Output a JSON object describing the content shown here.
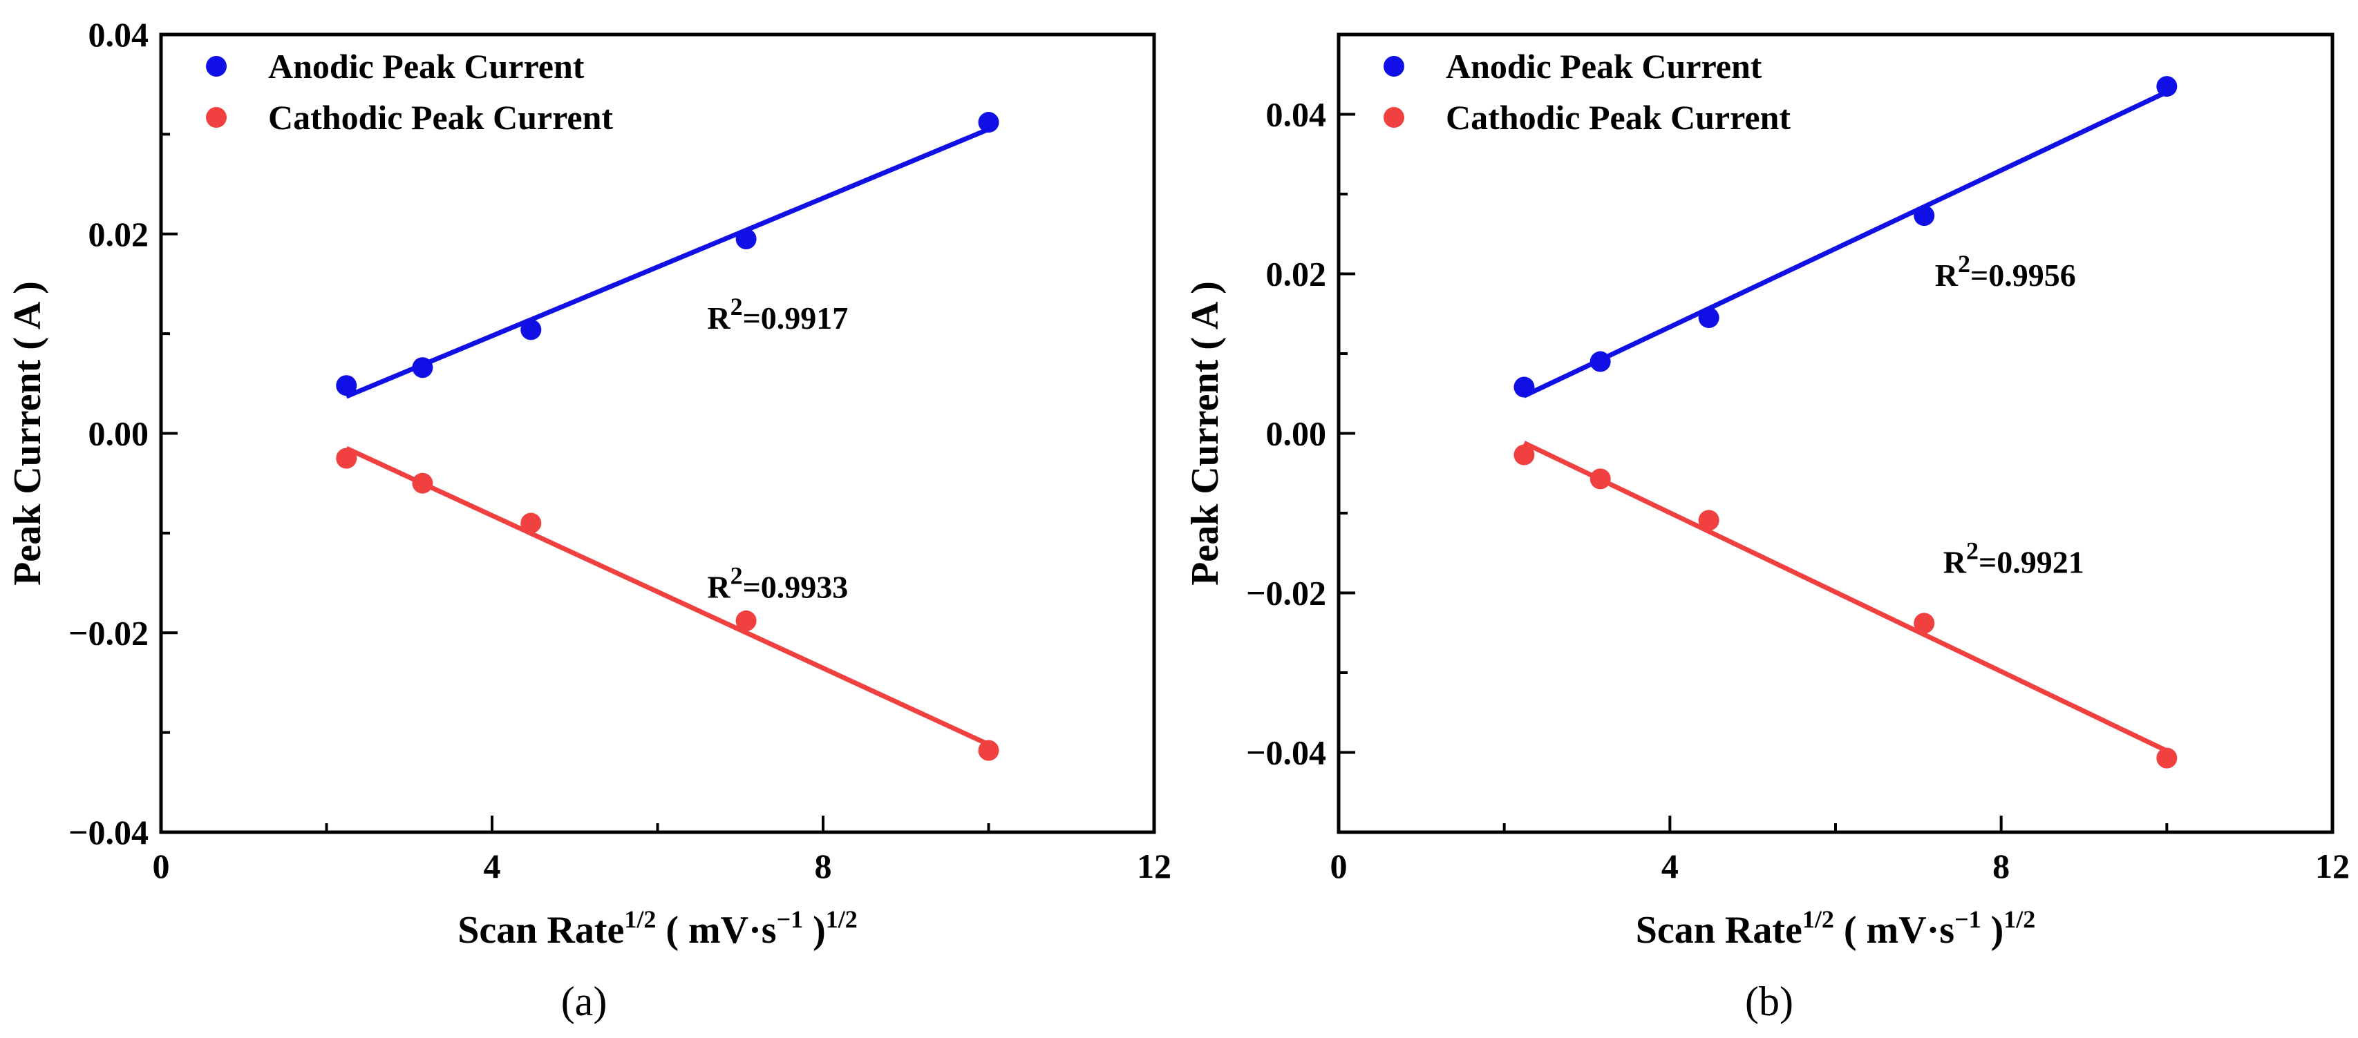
{
  "chart_data": [
    {
      "type": "scatter",
      "caption": "(a)",
      "xlabel": {
        "main": "Scan Rate",
        "sup1": "1/2",
        "unit_open": "( mV·s",
        "sup2": "−1",
        "unit_close": ")",
        "sup3": "1/2"
      },
      "ylabel": "Peak Current ( A )",
      "xlim": [
        0,
        12
      ],
      "ylim": [
        -0.04,
        0.04
      ],
      "xticks": [
        0,
        4,
        8,
        12
      ],
      "xtick_labels": [
        "0",
        "4",
        "8",
        "12"
      ],
      "yticks": [
        -0.04,
        -0.02,
        0.0,
        0.02,
        0.04
      ],
      "ytick_labels": [
        "−0.04",
        "−0.02",
        "0.00",
        "0.02",
        "0.04"
      ],
      "series": [
        {
          "name": "Anodic Peak Current",
          "color": "#1010e6",
          "x": [
            2.24,
            3.16,
            4.47,
            7.07,
            10.0
          ],
          "values": [
            0.0048,
            0.0066,
            0.0104,
            0.0195,
            0.0312
          ],
          "fit": {
            "x": [
              2.24,
              10.0
            ],
            "y": [
              0.0037,
              0.0305
            ]
          },
          "r2_label": "R",
          "r2_sup": "2",
          "r2_value": "=0.9917",
          "r2_pos": [
            6.6,
            0.0105
          ]
        },
        {
          "name": "Cathodic Peak Current",
          "color": "#f04040",
          "x": [
            2.24,
            3.16,
            4.47,
            7.07,
            10.0
          ],
          "values": [
            -0.0025,
            -0.005,
            -0.009,
            -0.0188,
            -0.0318
          ],
          "fit": {
            "x": [
              2.24,
              10.0
            ],
            "y": [
              -0.0015,
              -0.0312
            ]
          },
          "r2_label": "R",
          "r2_sup": "2",
          "r2_value": "=0.9933",
          "r2_pos": [
            6.6,
            -0.0165
          ]
        }
      ]
    },
    {
      "type": "scatter",
      "caption": "(b)",
      "xlabel": {
        "main": "Scan Rate",
        "sup1": "1/2",
        "unit_open": "( mV·s",
        "sup2": "−1",
        "unit_close": ")",
        "sup3": "1/2"
      },
      "ylabel": "Peak Current ( A )",
      "xlim": [
        0,
        12
      ],
      "ylim": [
        -0.05,
        0.05
      ],
      "xticks": [
        0,
        4,
        8,
        12
      ],
      "xtick_labels": [
        "0",
        "4",
        "8",
        "12"
      ],
      "yticks": [
        -0.04,
        -0.02,
        0.0,
        0.02,
        0.04
      ],
      "ytick_labels": [
        "−0.04",
        "−0.02",
        "0.00",
        "0.02",
        "0.04"
      ],
      "series": [
        {
          "name": "Anodic Peak Current",
          "color": "#1010e6",
          "x": [
            2.24,
            3.16,
            4.47,
            7.07,
            10.0
          ],
          "values": [
            0.0058,
            0.009,
            0.0145,
            0.0273,
            0.0435
          ],
          "fit": {
            "x": [
              2.24,
              10.0
            ],
            "y": [
              0.0047,
              0.0428
            ]
          },
          "r2_label": "R",
          "r2_sup": "2",
          "r2_value": "=0.9956",
          "r2_pos": [
            7.2,
            0.0185
          ]
        },
        {
          "name": "Cathodic Peak Current",
          "color": "#f04040",
          "x": [
            2.24,
            3.16,
            4.47,
            7.07,
            10.0
          ],
          "values": [
            -0.0027,
            -0.0057,
            -0.0109,
            -0.0238,
            -0.0407
          ],
          "fit": {
            "x": [
              2.24,
              10.0
            ],
            "y": [
              -0.0012,
              -0.0398
            ]
          },
          "r2_label": "R",
          "r2_sup": "2",
          "r2_value": "=0.9921",
          "r2_pos": [
            7.3,
            -0.0175
          ]
        }
      ]
    }
  ]
}
